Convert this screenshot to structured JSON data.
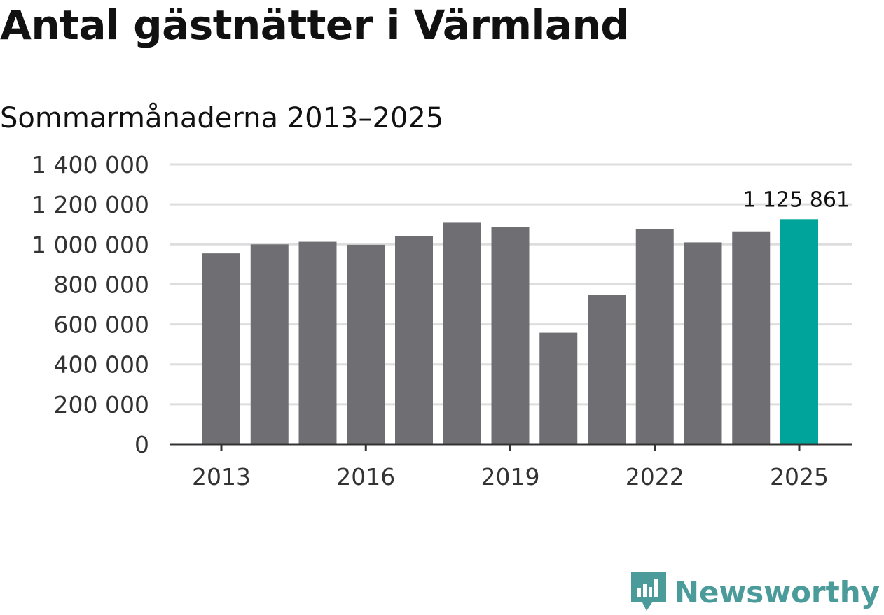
{
  "header": {
    "title": "Antal gästnätter i Värmland",
    "subtitle": "Sommarmånaderna 2013–2025"
  },
  "brand": {
    "name": "Newsworthy",
    "icon": "newsworthy-logo-icon"
  },
  "colors": {
    "bar": "#6f6e73",
    "highlight": "#00a49a",
    "grid": "#dddddd",
    "axis": "#333333",
    "brand": "#4a9b99"
  },
  "chart_data": {
    "type": "bar",
    "title": "Antal gästnätter i Värmland",
    "subtitle": "Sommarmånaderna 2013–2025",
    "categories": [
      "2013",
      "2014",
      "2015",
      "2016",
      "2017",
      "2018",
      "2019",
      "2020",
      "2021",
      "2022",
      "2023",
      "2024",
      "2025"
    ],
    "values": [
      955000,
      1000000,
      1013000,
      998000,
      1042000,
      1108000,
      1088000,
      558000,
      748000,
      1076000,
      1010000,
      1065000,
      1125861
    ],
    "highlight_index": 12,
    "highlight_label": "1 125 861",
    "xticks": [
      "2013",
      "2016",
      "2019",
      "2022",
      "2025"
    ],
    "yticks": [
      "0",
      "200 000",
      "400 000",
      "600 000",
      "800 000",
      "1 000 000",
      "1 200 000",
      "1 400 000"
    ],
    "ylim": [
      0,
      1400000
    ],
    "grid": true,
    "legend": "none"
  }
}
